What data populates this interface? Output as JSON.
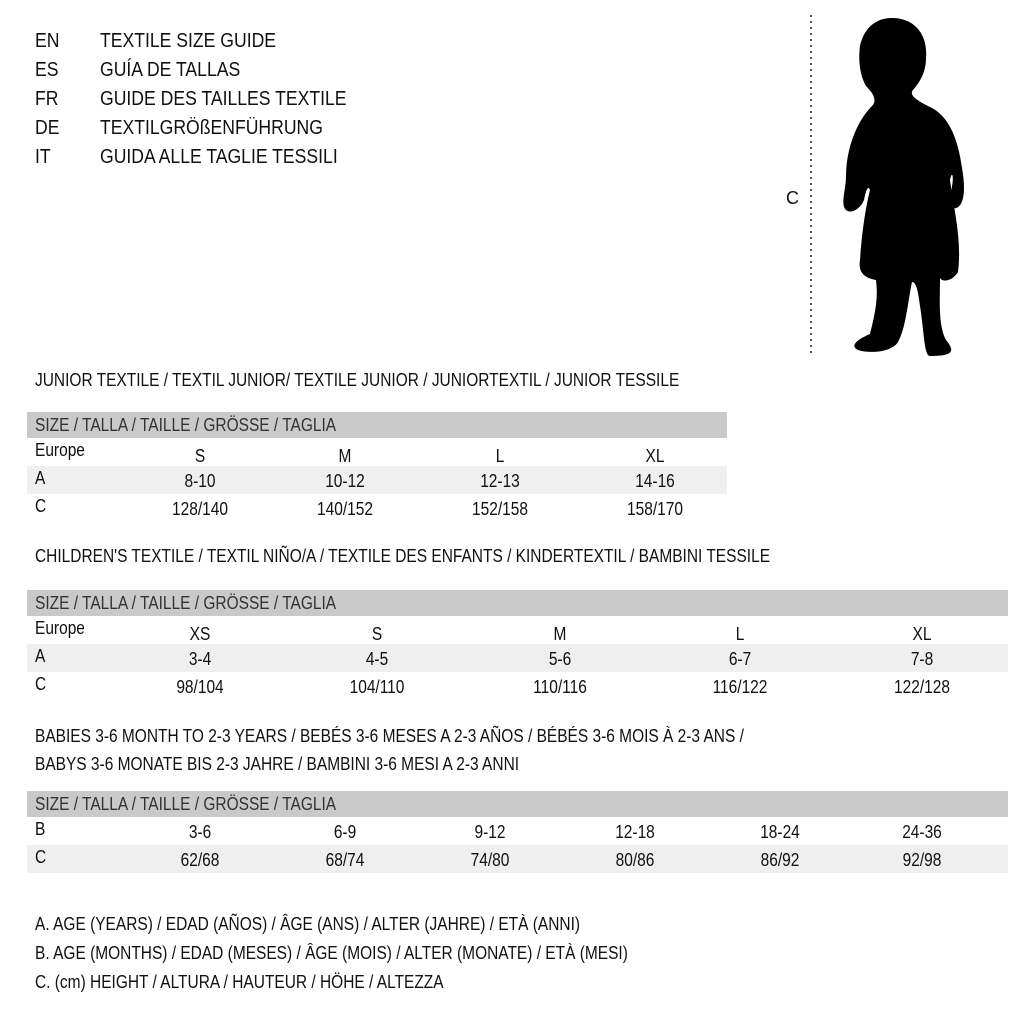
{
  "languages": [
    {
      "code": "EN",
      "title": "TEXTILE SIZE GUIDE"
    },
    {
      "code": "ES",
      "title": "GUÍA DE TALLAS"
    },
    {
      "code": "FR",
      "title": "GUIDE DES TAILLES TEXTILE"
    },
    {
      "code": "DE",
      "title": "TEXTILGRÖßENFÜHRUNG"
    },
    {
      "code": "IT",
      "title": "GUIDA ALLE TAGLIE TESSILI"
    }
  ],
  "figure": {
    "measure_label": "C"
  },
  "tables": [
    {
      "title_lines": [
        "JUNIOR TEXTILE / TEXTIL JUNIOR/ TEXTILE JUNIOR / JUNIORTEXTIL / JUNIOR TESSILE"
      ],
      "header": "SIZE / TALLA / TAILLE / GRÖSSE / TAGLIA",
      "rows": [
        {
          "label": "Europe",
          "values": [
            "S",
            "M",
            "L",
            "XL"
          ]
        },
        {
          "label": "A",
          "values": [
            "8-10",
            "10-12",
            "12-13",
            "14-16"
          ]
        },
        {
          "label": "C",
          "values": [
            "128/140",
            "140/152",
            "152/158",
            "158/170"
          ]
        }
      ]
    },
    {
      "title_lines": [
        "CHILDREN'S TEXTILE / TEXTIL NIÑO/A / TEXTILE DES ENFANTS / KINDERTEXTIL / BAMBINI TESSILE"
      ],
      "header": "SIZE / TALLA / TAILLE / GRÖSSE / TAGLIA",
      "rows": [
        {
          "label": "Europe",
          "values": [
            "XS",
            "S",
            "M",
            "L",
            "XL"
          ]
        },
        {
          "label": "A",
          "values": [
            "3-4",
            "4-5",
            "5-6",
            "6-7",
            "7-8"
          ]
        },
        {
          "label": "C",
          "values": [
            "98/104",
            "104/110",
            "110/116",
            "116/122",
            "122/128"
          ]
        }
      ]
    },
    {
      "title_lines": [
        "BABIES 3-6 MONTH TO 2-3 YEARS / BEBÉS 3-6 MESES A 2-3 AÑOS / BÉBÉS 3-6 MOIS À 2-3 ANS /",
        "BABYS 3-6 MONATE BIS 2-3 JAHRE / BAMBINI 3-6 MESI A 2-3 ANNI"
      ],
      "header": "SIZE / TALLA / TAILLE / GRÖSSE / TAGLIA",
      "rows": [
        {
          "label": "B",
          "values": [
            "3-6",
            "6-9",
            "9-12",
            "12-18",
            "18-24",
            "24-36"
          ]
        },
        {
          "label": "C",
          "values": [
            "62/68",
            "68/74",
            "74/80",
            "80/86",
            "86/92",
            "92/98"
          ]
        }
      ]
    }
  ],
  "legend": [
    "A. AGE (YEARS) / EDAD (AÑOS) / ÂGE (ANS) / ALTER (JAHRE) / ETÀ (ANNI)",
    "B. AGE (MONTHS) / EDAD (MESES) / ÂGE (MOIS) / ALTER (MONATE) / ETÀ (MESI)",
    "C. (cm) HEIGHT / ALTURA / HAUTEUR / HÖHE / ALTEZZA"
  ],
  "colors": {
    "header_bar": "#c9c9c9",
    "shaded_row": "#efefef"
  }
}
